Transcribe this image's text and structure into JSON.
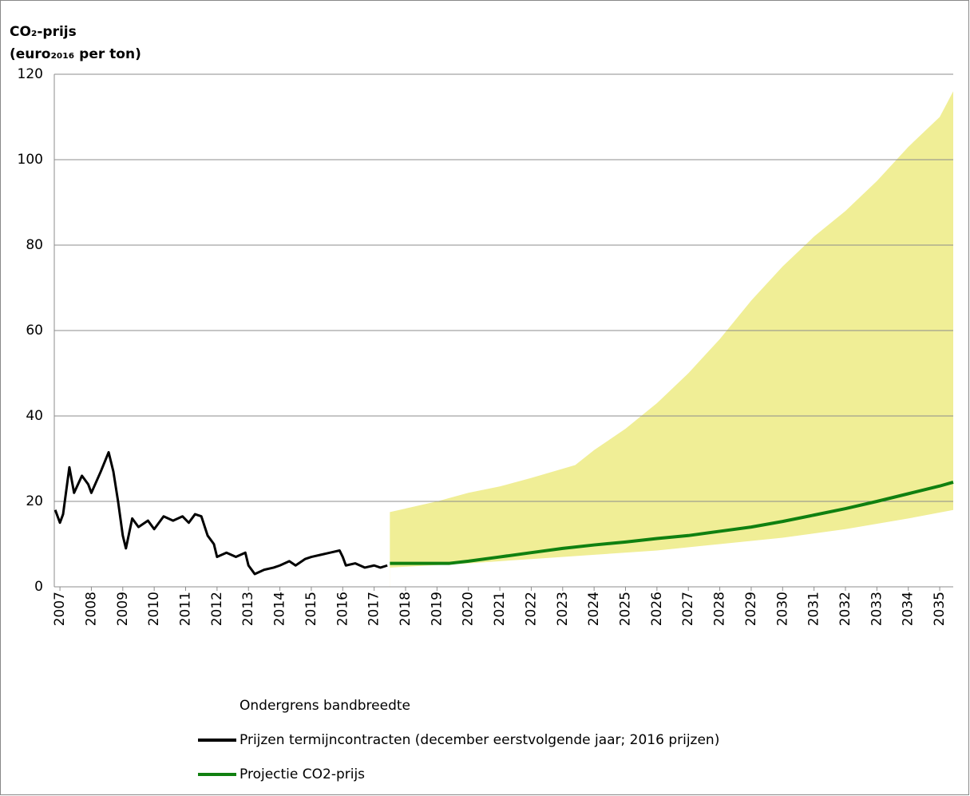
{
  "chart_data": {
    "type": "line",
    "ylabel_lines": [
      "CO₂-prijs",
      "(euro₂₀₁₆ per ton)"
    ],
    "xlim": [
      2006.82,
      2035.43
    ],
    "xticks": [
      2007,
      2008,
      2009,
      2010,
      2011,
      2012,
      2013,
      2014,
      2015,
      2016,
      2017,
      2018,
      2019,
      2020,
      2021,
      2022,
      2023,
      2024,
      2025,
      2026,
      2027,
      2028,
      2029,
      2030,
      2031,
      2032,
      2033,
      2034,
      2035
    ],
    "ylim": [
      0,
      120
    ],
    "yticks": [
      0,
      20,
      40,
      60,
      80,
      100,
      120
    ],
    "grid": true,
    "band": {
      "color": "#f0ee96",
      "x": [
        2017.5,
        2019,
        2020,
        2021,
        2022,
        2023.4,
        2024,
        2025,
        2026,
        2027,
        2028,
        2029,
        2029.5,
        2030,
        2031,
        2032,
        2033,
        2034,
        2035,
        2035.43
      ],
      "upper": [
        17.5,
        20,
        22,
        23.5,
        25.5,
        28.5,
        32,
        37,
        43,
        50,
        58,
        67,
        71,
        75,
        82,
        88,
        95,
        103,
        110,
        116
      ]
    },
    "series": [
      {
        "name": "Ondergrens bandbreedte",
        "color": "#ffffff",
        "x": [
          2017.5,
          2020,
          2022,
          2024,
          2026,
          2028,
          2030,
          2032,
          2034,
          2035.43
        ],
        "values": [
          4.5,
          5.5,
          6.5,
          7.5,
          8.5,
          10,
          11.5,
          13.5,
          16,
          18
        ]
      },
      {
        "name": "Prijzen termijncontracten (december eerstvolgende jaar; 2016 prijzen)",
        "color": "#000000",
        "x": [
          2006.85,
          2007.0,
          2007.1,
          2007.3,
          2007.45,
          2007.7,
          2007.9,
          2008.0,
          2008.3,
          2008.55,
          2008.7,
          2008.85,
          2009.0,
          2009.1,
          2009.3,
          2009.5,
          2009.8,
          2010.0,
          2010.3,
          2010.6,
          2010.9,
          2011.1,
          2011.3,
          2011.5,
          2011.7,
          2011.9,
          2012.0,
          2012.3,
          2012.6,
          2012.9,
          2013.0,
          2013.2,
          2013.5,
          2013.8,
          2014.0,
          2014.3,
          2014.5,
          2014.8,
          2015.0,
          2015.3,
          2015.6,
          2015.9,
          2016.0,
          2016.1,
          2016.4,
          2016.7,
          2017.0,
          2017.2,
          2017.42
        ],
        "values": [
          18,
          15,
          17,
          28,
          22,
          26,
          24,
          22,
          27,
          31.5,
          27,
          20,
          12,
          9,
          16,
          14,
          15.5,
          13.5,
          16.5,
          15.5,
          16.5,
          15,
          17,
          16.5,
          12,
          10,
          7,
          8,
          7,
          8,
          5,
          3,
          4,
          4.5,
          5,
          6,
          5,
          6.5,
          7,
          7.5,
          8,
          8.5,
          7,
          5,
          5.5,
          4.5,
          5,
          4.5,
          5
        ]
      },
      {
        "name": "Projectie CO2-prijs",
        "color": "#108010",
        "x": [
          2017.5,
          2019.4,
          2020,
          2021,
          2022,
          2023,
          2024,
          2025,
          2026,
          2027,
          2028,
          2029,
          2030,
          2031,
          2032,
          2033,
          2034,
          2035,
          2035.43
        ],
        "values": [
          5.5,
          5.5,
          6,
          7,
          8,
          9,
          9.8,
          10.5,
          11.3,
          12,
          13,
          14,
          15.3,
          16.8,
          18.3,
          20,
          21.8,
          23.6,
          24.5
        ]
      }
    ]
  }
}
